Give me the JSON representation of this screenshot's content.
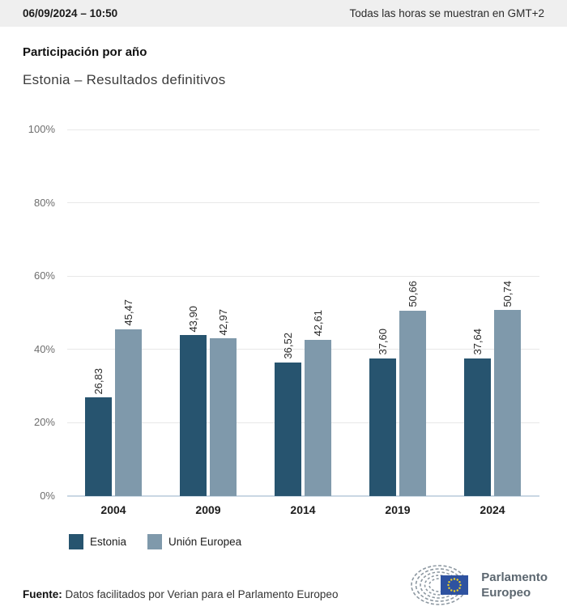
{
  "topbar": {
    "datetime": "06/09/2024 – 10:50",
    "timezone_note": "Todas las horas se muestran en GMT+2"
  },
  "header": {
    "title": "Participación por año",
    "subtitle": "Estonia – Resultados definitivos"
  },
  "chart_data": {
    "type": "bar",
    "title": "Participación por año",
    "subtitle": "Estonia – Resultados definitivos",
    "categories": [
      "2004",
      "2009",
      "2014",
      "2019",
      "2024"
    ],
    "series": [
      {
        "name": "Estonia",
        "color": "#27546f",
        "values": [
          26.83,
          43.9,
          36.52,
          37.6,
          37.64
        ]
      },
      {
        "name": "Unión Europea",
        "color": "#7f99ab",
        "values": [
          45.47,
          42.97,
          42.61,
          50.66,
          50.74
        ]
      }
    ],
    "ylim": [
      0,
      100
    ],
    "yticks": [
      100,
      80,
      60,
      40,
      20,
      0
    ],
    "ytick_suffix": "%",
    "decimal_separator": ",",
    "grid": "horizontal",
    "legend_position": "bottom",
    "value_label_style": "rotated-90-above-bar",
    "colors": {
      "gridline": "#e8e8e8",
      "axis_line": "#c9d7e3",
      "ytick_text": "#6e6e6e"
    }
  },
  "footer": {
    "source_label": "Fuente:",
    "source_text": " Datos facilitados por Verian para el Parlamento Europeo"
  },
  "logo": {
    "line1": "Parlamento",
    "line2": "Europeo",
    "flag_color": "#2e52a0",
    "star_color": "#f0d225",
    "arc_color": "#8d98a1"
  }
}
